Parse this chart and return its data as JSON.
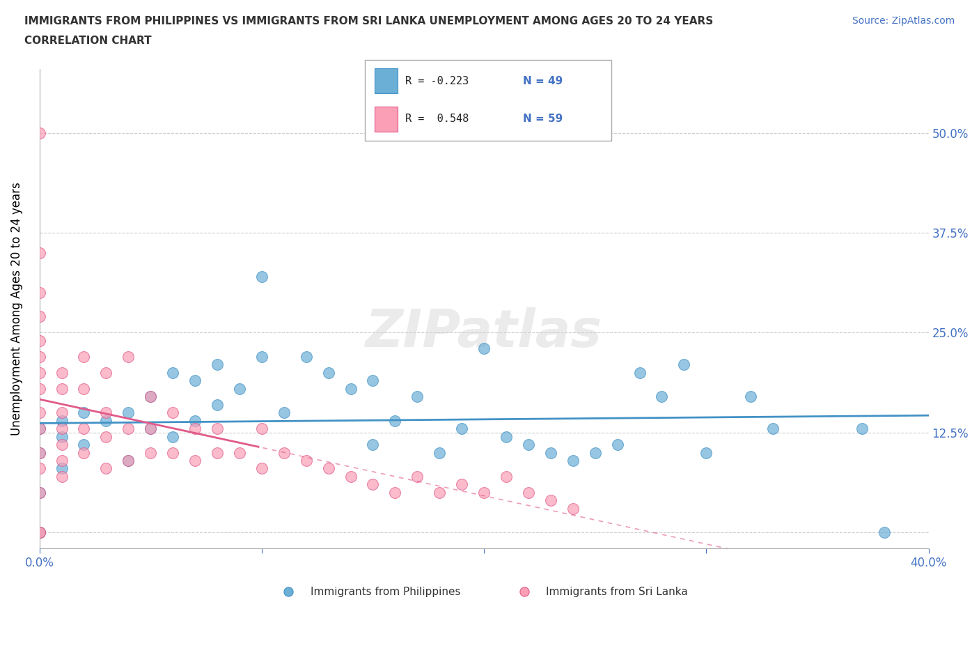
{
  "title_line1": "IMMIGRANTS FROM PHILIPPINES VS IMMIGRANTS FROM SRI LANKA UNEMPLOYMENT AMONG AGES 20 TO 24 YEARS",
  "title_line2": "CORRELATION CHART",
  "source_text": "Source: ZipAtlas.com",
  "ylabel": "Unemployment Among Ages 20 to 24 years",
  "xlim": [
    0.0,
    0.4
  ],
  "ylim": [
    -0.02,
    0.58
  ],
  "grid_color": "#cccccc",
  "watermark": "ZIPatlas",
  "color_blue": "#6baed6",
  "color_pink": "#fa9fb5",
  "trendline_blue": "#4292c6",
  "trendline_pink": "#e05a8a",
  "philippines_x": [
    0.0,
    0.0,
    0.0,
    0.0,
    0.0,
    0.01,
    0.01,
    0.01,
    0.02,
    0.02,
    0.03,
    0.04,
    0.04,
    0.05,
    0.05,
    0.06,
    0.06,
    0.07,
    0.07,
    0.08,
    0.08,
    0.09,
    0.1,
    0.1,
    0.11,
    0.12,
    0.13,
    0.14,
    0.15,
    0.15,
    0.16,
    0.17,
    0.18,
    0.19,
    0.2,
    0.21,
    0.22,
    0.23,
    0.24,
    0.25,
    0.26,
    0.27,
    0.28,
    0.29,
    0.3,
    0.32,
    0.33,
    0.37,
    0.38
  ],
  "philippines_y": [
    0.0,
    0.0,
    0.05,
    0.1,
    0.13,
    0.14,
    0.12,
    0.08,
    0.15,
    0.11,
    0.14,
    0.15,
    0.09,
    0.13,
    0.17,
    0.12,
    0.2,
    0.14,
    0.19,
    0.16,
    0.21,
    0.18,
    0.22,
    0.32,
    0.15,
    0.22,
    0.2,
    0.18,
    0.19,
    0.11,
    0.14,
    0.17,
    0.1,
    0.13,
    0.23,
    0.12,
    0.11,
    0.1,
    0.09,
    0.1,
    0.11,
    0.2,
    0.17,
    0.21,
    0.1,
    0.17,
    0.13,
    0.13,
    0.0
  ],
  "srilanka_x": [
    0.0,
    0.0,
    0.0,
    0.0,
    0.0,
    0.0,
    0.0,
    0.0,
    0.0,
    0.0,
    0.0,
    0.0,
    0.0,
    0.0,
    0.0,
    0.01,
    0.01,
    0.01,
    0.01,
    0.01,
    0.01,
    0.01,
    0.02,
    0.02,
    0.02,
    0.02,
    0.03,
    0.03,
    0.03,
    0.03,
    0.04,
    0.04,
    0.04,
    0.05,
    0.05,
    0.05,
    0.06,
    0.06,
    0.07,
    0.07,
    0.08,
    0.08,
    0.09,
    0.1,
    0.1,
    0.11,
    0.12,
    0.13,
    0.14,
    0.15,
    0.16,
    0.17,
    0.18,
    0.19,
    0.2,
    0.21,
    0.22,
    0.23,
    0.24
  ],
  "srilanka_y": [
    0.0,
    0.0,
    0.05,
    0.08,
    0.1,
    0.13,
    0.15,
    0.18,
    0.2,
    0.22,
    0.24,
    0.27,
    0.3,
    0.35,
    0.5,
    0.07,
    0.09,
    0.11,
    0.13,
    0.15,
    0.18,
    0.2,
    0.1,
    0.13,
    0.18,
    0.22,
    0.08,
    0.12,
    0.15,
    0.2,
    0.09,
    0.13,
    0.22,
    0.1,
    0.13,
    0.17,
    0.1,
    0.15,
    0.09,
    0.13,
    0.1,
    0.13,
    0.1,
    0.08,
    0.13,
    0.1,
    0.09,
    0.08,
    0.07,
    0.06,
    0.05,
    0.07,
    0.05,
    0.06,
    0.05,
    0.07,
    0.05,
    0.04,
    0.03
  ]
}
